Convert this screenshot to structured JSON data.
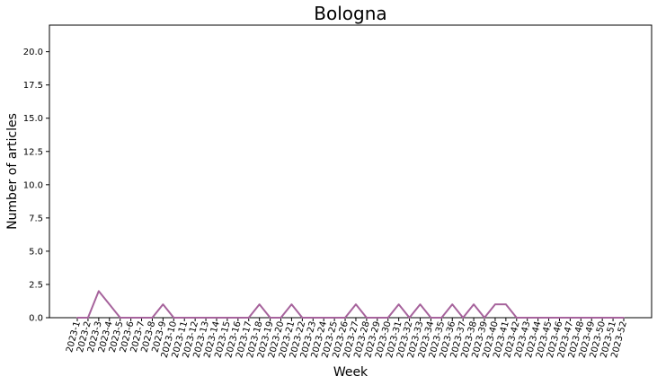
{
  "chart_data": {
    "type": "line",
    "title": "Bologna",
    "xlabel": "Week",
    "ylabel": "Number of articles",
    "ylim": [
      0,
      22
    ],
    "yticks": [
      "0.0",
      "2.5",
      "5.0",
      "7.5",
      "10.0",
      "12.5",
      "15.0",
      "17.5",
      "20.0"
    ],
    "grid": false,
    "legend": "none",
    "categories": [
      "2023-1",
      "2023-2",
      "2023-3",
      "2023-4",
      "2023-5",
      "2023-6",
      "2023-7",
      "2023-8",
      "2023-9",
      "2023-10",
      "2023-11",
      "2023-12",
      "2023-13",
      "2023-14",
      "2023-15",
      "2023-16",
      "2023-17",
      "2023-18",
      "2023-19",
      "2023-20",
      "2023-21",
      "2023-22",
      "2023-23",
      "2023-24",
      "2023-25",
      "2023-26",
      "2023-27",
      "2023-28",
      "2023-29",
      "2023-30",
      "2023-31",
      "2023-32",
      "2023-33",
      "2023-34",
      "2023-35",
      "2023-36",
      "2023-37",
      "2023-38",
      "2023-39",
      "2023-40",
      "2023-41",
      "2023-42",
      "2023-43",
      "2023-44",
      "2023-45",
      "2023-46",
      "2023-47",
      "2023-48",
      "2023-49",
      "2023-50",
      "2023-51",
      "2023-52"
    ],
    "series": [
      {
        "color": "#a6639c",
        "values": [
          0,
          0,
          2,
          1,
          0,
          0,
          0,
          0,
          1,
          0,
          0,
          0,
          0,
          0,
          0,
          0,
          0,
          1,
          0,
          0,
          1,
          0,
          0,
          0,
          0,
          0,
          1,
          0,
          0,
          0,
          1,
          0,
          1,
          0,
          0,
          1,
          0,
          1,
          0,
          1,
          1,
          0,
          0,
          0,
          0,
          0,
          0,
          0,
          0,
          0,
          0,
          0
        ]
      }
    ]
  }
}
